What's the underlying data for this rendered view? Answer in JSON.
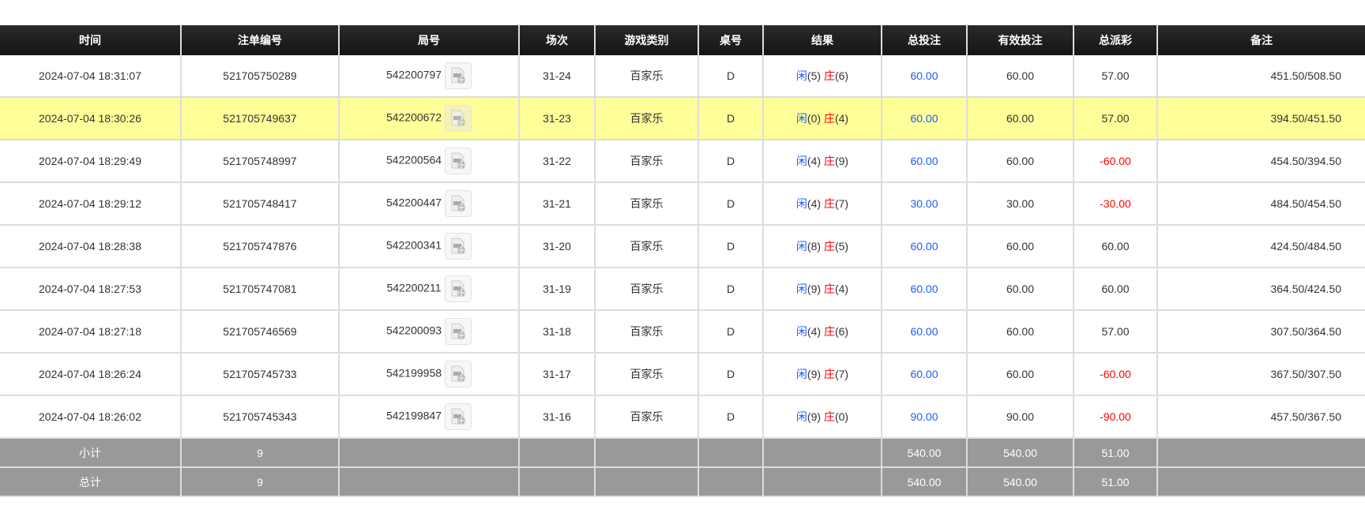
{
  "headers": [
    "时间",
    "注单编号",
    "局号",
    "场次",
    "游戏类别",
    "桌号",
    "结果",
    "总投注",
    "有效投注",
    "总派彩",
    "备注"
  ],
  "rows": [
    {
      "time": "2024-07-04 18:31:07",
      "bet_id": "521705750289",
      "round": "542200797",
      "session": "31-24",
      "game": "百家乐",
      "table": "D",
      "player": "闲",
      "pv": "(5)",
      "banker": "庄",
      "bv": "(6)",
      "total": "60.00",
      "valid": "60.00",
      "payout": "57.00",
      "payout_neg": false,
      "remark": "451.50/508.50",
      "highlight": false
    },
    {
      "time": "2024-07-04 18:30:26",
      "bet_id": "521705749637",
      "round": "542200672",
      "session": "31-23",
      "game": "百家乐",
      "table": "D",
      "player": "闲",
      "pv": "(0)",
      "banker": "庄",
      "bv": "(4)",
      "total": "60.00",
      "valid": "60.00",
      "payout": "57.00",
      "payout_neg": false,
      "remark": "394.50/451.50",
      "highlight": true
    },
    {
      "time": "2024-07-04 18:29:49",
      "bet_id": "521705748997",
      "round": "542200564",
      "session": "31-22",
      "game": "百家乐",
      "table": "D",
      "player": "闲",
      "pv": "(4)",
      "banker": "庄",
      "bv": "(9)",
      "total": "60.00",
      "valid": "60.00",
      "payout": "-60.00",
      "payout_neg": true,
      "remark": "454.50/394.50",
      "highlight": false
    },
    {
      "time": "2024-07-04 18:29:12",
      "bet_id": "521705748417",
      "round": "542200447",
      "session": "31-21",
      "game": "百家乐",
      "table": "D",
      "player": "闲",
      "pv": "(4)",
      "banker": "庄",
      "bv": "(7)",
      "total": "30.00",
      "valid": "30.00",
      "payout": "-30.00",
      "payout_neg": true,
      "remark": "484.50/454.50",
      "highlight": false
    },
    {
      "time": "2024-07-04 18:28:38",
      "bet_id": "521705747876",
      "round": "542200341",
      "session": "31-20",
      "game": "百家乐",
      "table": "D",
      "player": "闲",
      "pv": "(8)",
      "banker": "庄",
      "bv": "(5)",
      "total": "60.00",
      "valid": "60.00",
      "payout": "60.00",
      "payout_neg": false,
      "remark": "424.50/484.50",
      "highlight": false
    },
    {
      "time": "2024-07-04 18:27:53",
      "bet_id": "521705747081",
      "round": "542200211",
      "session": "31-19",
      "game": "百家乐",
      "table": "D",
      "player": "闲",
      "pv": "(9)",
      "banker": "庄",
      "bv": "(4)",
      "total": "60.00",
      "valid": "60.00",
      "payout": "60.00",
      "payout_neg": false,
      "remark": "364.50/424.50",
      "highlight": false
    },
    {
      "time": "2024-07-04 18:27:18",
      "bet_id": "521705746569",
      "round": "542200093",
      "session": "31-18",
      "game": "百家乐",
      "table": "D",
      "player": "闲",
      "pv": "(4)",
      "banker": "庄",
      "bv": "(6)",
      "total": "60.00",
      "valid": "60.00",
      "payout": "57.00",
      "payout_neg": false,
      "remark": "307.50/364.50",
      "highlight": false
    },
    {
      "time": "2024-07-04 18:26:24",
      "bet_id": "521705745733",
      "round": "542199958",
      "session": "31-17",
      "game": "百家乐",
      "table": "D",
      "player": "闲",
      "pv": "(9)",
      "banker": "庄",
      "bv": "(7)",
      "total": "60.00",
      "valid": "60.00",
      "payout": "-60.00",
      "payout_neg": true,
      "remark": "367.50/307.50",
      "highlight": false
    },
    {
      "time": "2024-07-04 18:26:02",
      "bet_id": "521705745343",
      "round": "542199847",
      "session": "31-16",
      "game": "百家乐",
      "table": "D",
      "player": "闲",
      "pv": "(9)",
      "banker": "庄",
      "bv": "(0)",
      "total": "90.00",
      "valid": "90.00",
      "payout": "-90.00",
      "payout_neg": true,
      "remark": "457.50/367.50",
      "highlight": false
    }
  ],
  "summary": [
    {
      "label": "小计",
      "count": "9",
      "total": "540.00",
      "valid": "540.00",
      "payout": "51.00"
    },
    {
      "label": "总计",
      "count": "9",
      "total": "540.00",
      "valid": "540.00",
      "payout": "51.00"
    }
  ],
  "colors": {
    "header": "#1b1b1b",
    "highlight": "#ffff99",
    "summary": "#999999",
    "player": "#1a5cff",
    "banker": "#ff0000",
    "negative": "#ff0000"
  },
  "icons": {
    "replay": "video-replay-icon"
  }
}
